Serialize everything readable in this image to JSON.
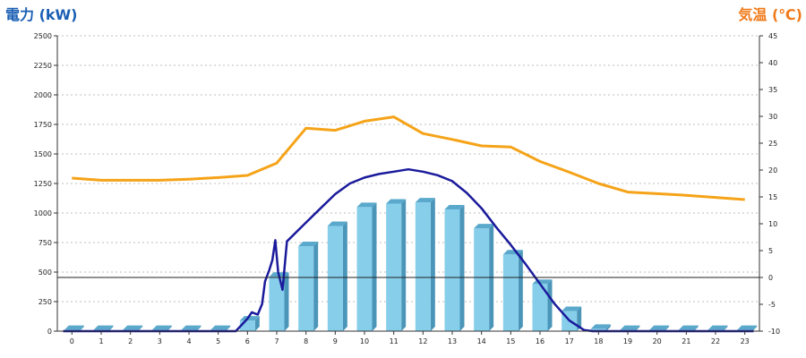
{
  "chart_data": {
    "type": "bar+line",
    "left_axis": {
      "title": "電力 (kW)",
      "min": 0,
      "max": 2500,
      "step": 250,
      "color": "#1a5fb4"
    },
    "right_axis": {
      "title": "気温 (℃)",
      "min": -10,
      "max": 45,
      "step": 5,
      "color": "#f07a1a"
    },
    "x_ticks": [
      "0",
      "1",
      "2",
      "3",
      "4",
      "5",
      "6",
      "7",
      "8",
      "9",
      "10",
      "11",
      "12",
      "13",
      "14",
      "15",
      "16",
      "17",
      "18",
      "19",
      "20",
      "21",
      "22",
      "23"
    ],
    "grid": "horizontal dotted",
    "bars": {
      "color": "#87ceeb",
      "values": [
        10,
        10,
        10,
        10,
        10,
        10,
        90,
        460,
        720,
        890,
        1050,
        1080,
        1090,
        1030,
        870,
        650,
        400,
        170,
        20,
        10,
        10,
        10,
        10,
        10
      ]
    },
    "power_line": {
      "color": "#1a1a9c",
      "points": [
        [
          -0.3,
          0
        ],
        [
          5.6,
          0
        ],
        [
          6.0,
          105
        ],
        [
          6.15,
          160
        ],
        [
          6.35,
          140
        ],
        [
          6.5,
          230
        ],
        [
          6.6,
          420
        ],
        [
          6.75,
          520
        ],
        [
          6.85,
          600
        ],
        [
          6.95,
          770
        ],
        [
          7.05,
          500
        ],
        [
          7.2,
          350
        ],
        [
          7.35,
          760
        ],
        [
          8,
          920
        ],
        [
          8.5,
          1040
        ],
        [
          9,
          1160
        ],
        [
          9.5,
          1250
        ],
        [
          10,
          1300
        ],
        [
          10.5,
          1330
        ],
        [
          11,
          1350
        ],
        [
          11.5,
          1370
        ],
        [
          12,
          1350
        ],
        [
          12.5,
          1320
        ],
        [
          13,
          1270
        ],
        [
          13.5,
          1170
        ],
        [
          14,
          1040
        ],
        [
          14.5,
          880
        ],
        [
          15,
          730
        ],
        [
          15.5,
          570
        ],
        [
          16,
          400
        ],
        [
          16.5,
          230
        ],
        [
          17,
          90
        ],
        [
          17.5,
          10
        ],
        [
          17.8,
          0
        ],
        [
          23.3,
          0
        ]
      ]
    },
    "temp_line": {
      "color": "#f5a318",
      "points": [
        [
          0,
          18.5
        ],
        [
          1,
          18.1
        ],
        [
          2,
          18.1
        ],
        [
          3,
          18.1
        ],
        [
          4,
          18.3
        ],
        [
          5,
          18.6
        ],
        [
          6,
          19.0
        ],
        [
          7,
          21.3
        ],
        [
          8,
          27.8
        ],
        [
          9,
          27.4
        ],
        [
          10,
          29.1
        ],
        [
          11,
          29.9
        ],
        [
          12,
          26.8
        ],
        [
          13,
          25.7
        ],
        [
          14,
          24.5
        ],
        [
          15,
          24.3
        ],
        [
          16,
          21.6
        ],
        [
          17,
          19.6
        ],
        [
          18,
          17.5
        ],
        [
          19,
          15.9
        ],
        [
          20,
          15.6
        ],
        [
          21,
          15.3
        ],
        [
          22,
          14.9
        ],
        [
          23,
          14.5
        ]
      ]
    },
    "zero_line_temp": 0
  }
}
